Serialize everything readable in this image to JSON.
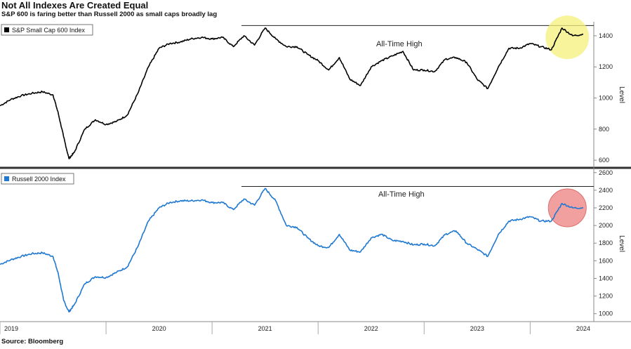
{
  "title": "Not All Indexes Are Created Equal",
  "subtitle": "S&P 600 is faring better than Russell 2000 as small caps broadly lag",
  "source": "Source: Bloomberg",
  "chart_data": [
    {
      "type": "line",
      "legend": "S&P Small Cap 600 Index",
      "color": "#000000",
      "ylabel": "Level",
      "yticks": [
        600,
        800,
        1000,
        1200,
        1400
      ],
      "ylim": [
        560,
        1490
      ],
      "annotation": "All-Time High",
      "all_time_high": 1466,
      "highlight": {
        "color": "#f5f07a",
        "x": 2024.35,
        "y": 1390
      },
      "x": [
        2019.0,
        2019.1,
        2019.2,
        2019.3,
        2019.4,
        2019.5,
        2019.55,
        2019.6,
        2019.65,
        2019.7,
        2019.8,
        2019.9,
        2020.0,
        2020.1,
        2020.2,
        2020.3,
        2020.4,
        2020.5,
        2020.6,
        2020.7,
        2020.8,
        2020.9,
        2021.0,
        2021.1,
        2021.2,
        2021.3,
        2021.4,
        2021.5,
        2021.6,
        2021.7,
        2021.8,
        2021.9,
        2022.0,
        2022.1,
        2022.2,
        2022.3,
        2022.4,
        2022.5,
        2022.6,
        2022.7,
        2022.8,
        2022.9,
        2023.0,
        2023.1,
        2023.2,
        2023.3,
        2023.4,
        2023.5,
        2023.6,
        2023.7,
        2023.8,
        2023.9,
        2024.0,
        2024.1,
        2024.2,
        2024.3,
        2024.4,
        2024.5
      ],
      "values": [
        950,
        990,
        1015,
        1030,
        1040,
        1020,
        900,
        750,
        610,
        650,
        800,
        860,
        830,
        850,
        890,
        1030,
        1200,
        1320,
        1350,
        1360,
        1380,
        1390,
        1380,
        1390,
        1330,
        1400,
        1340,
        1450,
        1380,
        1330,
        1330,
        1280,
        1240,
        1180,
        1260,
        1120,
        1080,
        1200,
        1240,
        1270,
        1300,
        1180,
        1180,
        1170,
        1250,
        1260,
        1230,
        1120,
        1060,
        1200,
        1320,
        1320,
        1350,
        1330,
        1310,
        1450,
        1400,
        1410
      ]
    },
    {
      "type": "line",
      "legend": "Russell 2000 Index",
      "color": "#1f78d1",
      "ylabel": "Level",
      "yticks": [
        1000,
        1200,
        1400,
        1600,
        1800,
        2000,
        2200,
        2400,
        2600
      ],
      "ylim": [
        910,
        2630
      ],
      "annotation": "All-Time High",
      "all_time_high": 2443,
      "highlight": {
        "color": "#ee8080",
        "x": 2024.35,
        "y": 2200
      },
      "x": [
        2019.0,
        2019.1,
        2019.2,
        2019.3,
        2019.4,
        2019.5,
        2019.55,
        2019.6,
        2019.65,
        2019.7,
        2019.8,
        2019.9,
        2020.0,
        2020.1,
        2020.2,
        2020.3,
        2020.4,
        2020.5,
        2020.6,
        2020.7,
        2020.8,
        2020.9,
        2021.0,
        2021.1,
        2021.2,
        2021.3,
        2021.4,
        2021.5,
        2021.6,
        2021.7,
        2021.8,
        2021.9,
        2022.0,
        2022.1,
        2022.2,
        2022.3,
        2022.4,
        2022.5,
        2022.6,
        2022.7,
        2022.8,
        2022.9,
        2023.0,
        2023.1,
        2023.2,
        2023.3,
        2023.4,
        2023.5,
        2023.6,
        2023.7,
        2023.8,
        2023.9,
        2024.0,
        2024.1,
        2024.2,
        2024.3,
        2024.4,
        2024.5
      ],
      "values": [
        1560,
        1610,
        1650,
        1680,
        1690,
        1650,
        1450,
        1150,
        1020,
        1100,
        1340,
        1420,
        1410,
        1470,
        1530,
        1760,
        2050,
        2200,
        2260,
        2280,
        2280,
        2290,
        2260,
        2260,
        2180,
        2300,
        2230,
        2420,
        2280,
        2000,
        1980,
        1860,
        1770,
        1750,
        1900,
        1720,
        1700,
        1860,
        1900,
        1830,
        1820,
        1780,
        1790,
        1770,
        1900,
        1940,
        1800,
        1730,
        1650,
        1900,
        2050,
        2070,
        2100,
        2050,
        2050,
        2250,
        2200,
        2200
      ]
    }
  ],
  "xticks": [
    "2019",
    "2020",
    "2021",
    "2022",
    "2023",
    "2024"
  ]
}
